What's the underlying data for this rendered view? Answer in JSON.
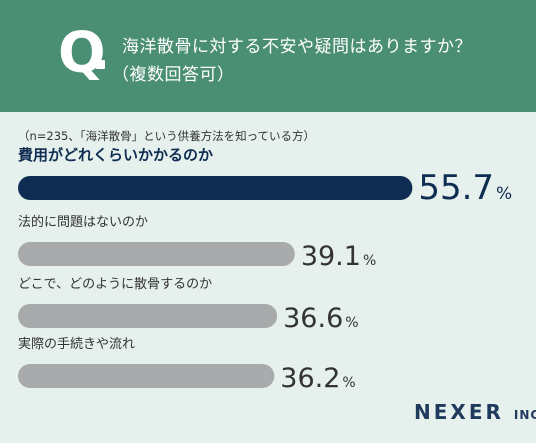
{
  "header": {
    "q_label": "Q",
    "question_line1": "海洋散骨に対する不安や疑問はありますか？",
    "question_line2": "（複数回答可）",
    "bg_color": "#4a8f74"
  },
  "note": "（n=235、「海洋散骨」という供養方法を知っている方）",
  "chart_data": {
    "type": "bar",
    "orientation": "horizontal",
    "categories": [
      "費用がどれくらいかかるのか",
      "法的に問題はないのか",
      "どこで、どのように散骨するのか",
      "実際の手続きや流れ"
    ],
    "values": [
      55.7,
      39.1,
      36.6,
      36.2
    ],
    "value_unit": "%",
    "highlight_color": "#0f2d52",
    "bar_color": "#a9aaac",
    "xlim": [
      0,
      100
    ],
    "grid": false
  },
  "brand": {
    "name": "NEXER",
    "suffix": "INC."
  }
}
